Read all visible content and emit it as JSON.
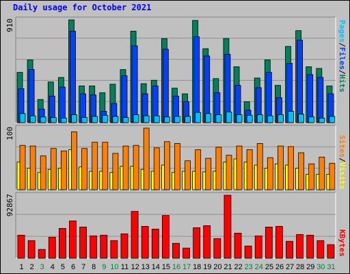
{
  "title": "Daily usage for October 2021",
  "colors": {
    "pages": "#00c0ff",
    "files": "#0040ff",
    "hits": "#00805c",
    "sites": "#ffff00",
    "visits": "#ff8000",
    "kbytes": "#ff0000",
    "weekday_label": "#000000",
    "weekend_label": "#008040"
  },
  "chart_data": [
    {
      "type": "bar",
      "name": "hits-files-pages",
      "ymax_label": "910",
      "ylim": [
        0,
        910
      ],
      "categories": [
        "1",
        "2",
        "3",
        "4",
        "5",
        "6",
        "7",
        "8",
        "9",
        "10",
        "11",
        "12",
        "13",
        "14",
        "15",
        "16",
        "17",
        "18",
        "19",
        "20",
        "21",
        "22",
        "23",
        "24",
        "25",
        "26",
        "27",
        "28",
        "29",
        "30",
        "31"
      ],
      "legend": [
        "Pages",
        "/",
        "Files",
        "/",
        "Hits"
      ],
      "series": [
        {
          "name": "Hits",
          "values": [
            445,
            555,
            205,
            360,
            400,
            910,
            325,
            325,
            265,
            340,
            470,
            810,
            345,
            375,
            745,
            305,
            255,
            905,
            655,
            390,
            745,
            495,
            185,
            395,
            555,
            330,
            675,
            815,
            495,
            480,
            325
          ]
        },
        {
          "name": "Files",
          "values": [
            300,
            470,
            120,
            235,
            315,
            810,
            255,
            245,
            100,
            170,
            415,
            680,
            255,
            325,
            650,
            235,
            185,
            760,
            590,
            265,
            605,
            330,
            110,
            310,
            445,
            220,
            525,
            730,
            425,
            400,
            255
          ]
        },
        {
          "name": "Pages",
          "values": [
            80,
            60,
            50,
            45,
            40,
            70,
            45,
            55,
            65,
            55,
            45,
            70,
            60,
            60,
            50,
            55,
            55,
            90,
            80,
            70,
            95,
            70,
            65,
            70,
            60,
            70,
            100,
            75,
            50,
            40,
            55
          ]
        }
      ]
    },
    {
      "type": "bar",
      "name": "visits-sites",
      "ymax_label": "100",
      "ylim": [
        0,
        100
      ],
      "categories": [
        "1",
        "2",
        "3",
        "4",
        "5",
        "6",
        "7",
        "8",
        "9",
        "10",
        "11",
        "12",
        "13",
        "14",
        "15",
        "16",
        "17",
        "18",
        "19",
        "20",
        "21",
        "22",
        "23",
        "24",
        "25",
        "26",
        "27",
        "28",
        "29",
        "30",
        "31"
      ],
      "legend": [
        "Sites",
        "/",
        "Visits"
      ],
      "series": [
        {
          "name": "Visits",
          "values": [
            72,
            71,
            55,
            67,
            63,
            94,
            67,
            77,
            77,
            59,
            71,
            72,
            100,
            68,
            78,
            75,
            47,
            65,
            51,
            69,
            56,
            71,
            65,
            75,
            52,
            71,
            70,
            60,
            42,
            53,
            43
          ]
        },
        {
          "name": "Sites",
          "values": [
            45,
            35,
            28,
            33,
            35,
            65,
            37,
            30,
            30,
            28,
            38,
            38,
            33,
            30,
            40,
            28,
            30,
            30,
            29,
            30,
            45,
            50,
            45,
            40,
            35,
            42,
            40,
            35,
            25,
            25,
            25
          ]
        }
      ]
    },
    {
      "type": "bar",
      "name": "kbytes",
      "ymax_label": "92867",
      "ylim": [
        0,
        92867
      ],
      "categories": [
        "1",
        "2",
        "3",
        "4",
        "5",
        "6",
        "7",
        "8",
        "9",
        "10",
        "11",
        "12",
        "13",
        "14",
        "15",
        "16",
        "17",
        "18",
        "19",
        "20",
        "21",
        "22",
        "23",
        "24",
        "25",
        "26",
        "27",
        "28",
        "29",
        "30",
        "31"
      ],
      "legend": [
        "KBytes"
      ],
      "series": [
        {
          "name": "KBytes",
          "values": [
            34000,
            26000,
            13000,
            31000,
            44000,
            55000,
            46000,
            33000,
            34000,
            26000,
            36000,
            69000,
            47000,
            43000,
            63000,
            22000,
            15000,
            45000,
            48000,
            29000,
            92867,
            37000,
            18000,
            33000,
            46000,
            47000,
            25000,
            35000,
            34000,
            26000,
            20000
          ]
        }
      ]
    }
  ],
  "weekend_days": [
    "3",
    "9",
    "10",
    "16",
    "17",
    "23",
    "24",
    "30",
    "31"
  ]
}
